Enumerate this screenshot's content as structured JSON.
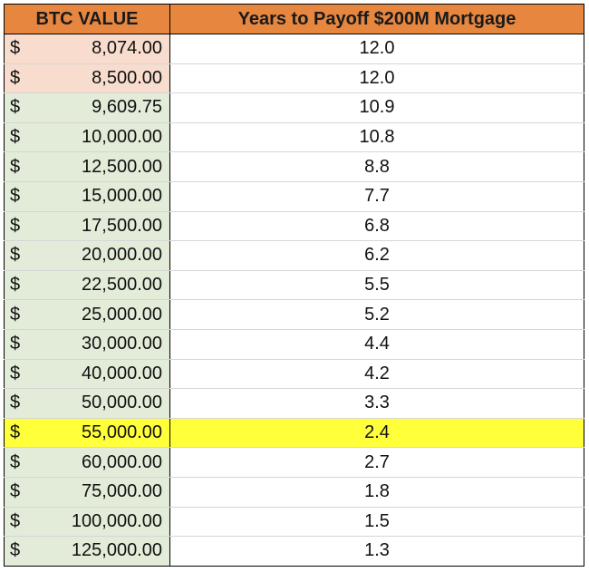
{
  "table": {
    "headers": {
      "btc_value": "BTC VALUE",
      "years": "Years to Payoff $200M Mortgage"
    },
    "currency_symbol": "$",
    "colors": {
      "header_fill": "#e7873f",
      "peach_fill": "#f8dccd",
      "green_fill": "#e3ecd9",
      "highlight_fill": "#ffff3a"
    },
    "rows": [
      {
        "btc": "8,074.00",
        "years": "12.0",
        "tone": "peach"
      },
      {
        "btc": "8,500.00",
        "years": "12.0",
        "tone": "peach"
      },
      {
        "btc": "9,609.75",
        "years": "10.9",
        "tone": "green"
      },
      {
        "btc": "10,000.00",
        "years": "10.8",
        "tone": "green"
      },
      {
        "btc": "12,500.00",
        "years": "8.8",
        "tone": "green"
      },
      {
        "btc": "15,000.00",
        "years": "7.7",
        "tone": "green"
      },
      {
        "btc": "17,500.00",
        "years": "6.8",
        "tone": "green"
      },
      {
        "btc": "20,000.00",
        "years": "6.2",
        "tone": "green"
      },
      {
        "btc": "22,500.00",
        "years": "5.5",
        "tone": "green"
      },
      {
        "btc": "25,000.00",
        "years": "5.2",
        "tone": "green"
      },
      {
        "btc": "30,000.00",
        "years": "4.4",
        "tone": "green"
      },
      {
        "btc": "40,000.00",
        "years": "4.2",
        "tone": "green"
      },
      {
        "btc": "50,000.00",
        "years": "3.3",
        "tone": "green"
      },
      {
        "btc": "55,000.00",
        "years": "2.4",
        "tone": "yellow"
      },
      {
        "btc": "60,000.00",
        "years": "2.7",
        "tone": "green"
      },
      {
        "btc": "75,000.00",
        "years": "1.8",
        "tone": "green"
      },
      {
        "btc": "100,000.00",
        "years": "1.5",
        "tone": "green"
      },
      {
        "btc": "125,000.00",
        "years": "1.3",
        "tone": "green"
      }
    ]
  }
}
